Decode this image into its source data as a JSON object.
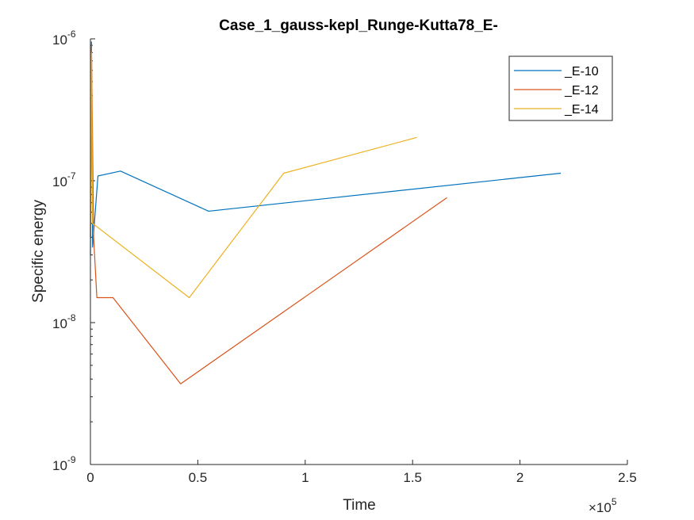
{
  "chart_data": {
    "type": "line",
    "title": "Case_1_gauss-kepl_Runge-Kutta78_E-",
    "xlabel": "Time",
    "ylabel": "Specific energy",
    "xlim": [
      0,
      250000
    ],
    "ylim": [
      1e-09,
      1e-06
    ],
    "yscale": "log",
    "x_multiplier_label": "×10",
    "x_multiplier_exp": "5",
    "x_ticks": [
      0,
      50000,
      100000,
      150000,
      200000,
      250000
    ],
    "x_tick_labels": [
      "0",
      "0.5",
      "1",
      "1.5",
      "2",
      "2.5"
    ],
    "y_ticks": [
      1e-09,
      1e-08,
      1e-07,
      1e-06
    ],
    "y_tick_base": "10",
    "y_tick_exps": [
      "-9",
      "-8",
      "-7",
      "-6"
    ],
    "legend_position": "top-right",
    "series": [
      {
        "name": "_E-10",
        "color": "#0072BD",
        "x": [
          0,
          500,
          1000,
          3500,
          14000,
          55000,
          219000
        ],
        "y": [
          3e-08,
          9.5e-07,
          3.4e-08,
          1.08e-07,
          1.17e-07,
          6.1e-08,
          1.13e-07
        ]
      },
      {
        "name": "_E-12",
        "color": "#D95319",
        "x": [
          0,
          500,
          1500,
          3000,
          10500,
          42000,
          166000
        ],
        "y": [
          4e-08,
          9e-07,
          4e-08,
          1.5e-08,
          1.5e-08,
          3.7e-09,
          7.6e-08
        ]
      },
      {
        "name": "_E-14",
        "color": "#EDB120",
        "x": [
          0,
          500,
          1000,
          46000,
          90000,
          152000
        ],
        "y": [
          4e-08,
          8e-07,
          5e-08,
          1.5e-08,
          1.13e-07,
          2.02e-07
        ]
      }
    ]
  }
}
